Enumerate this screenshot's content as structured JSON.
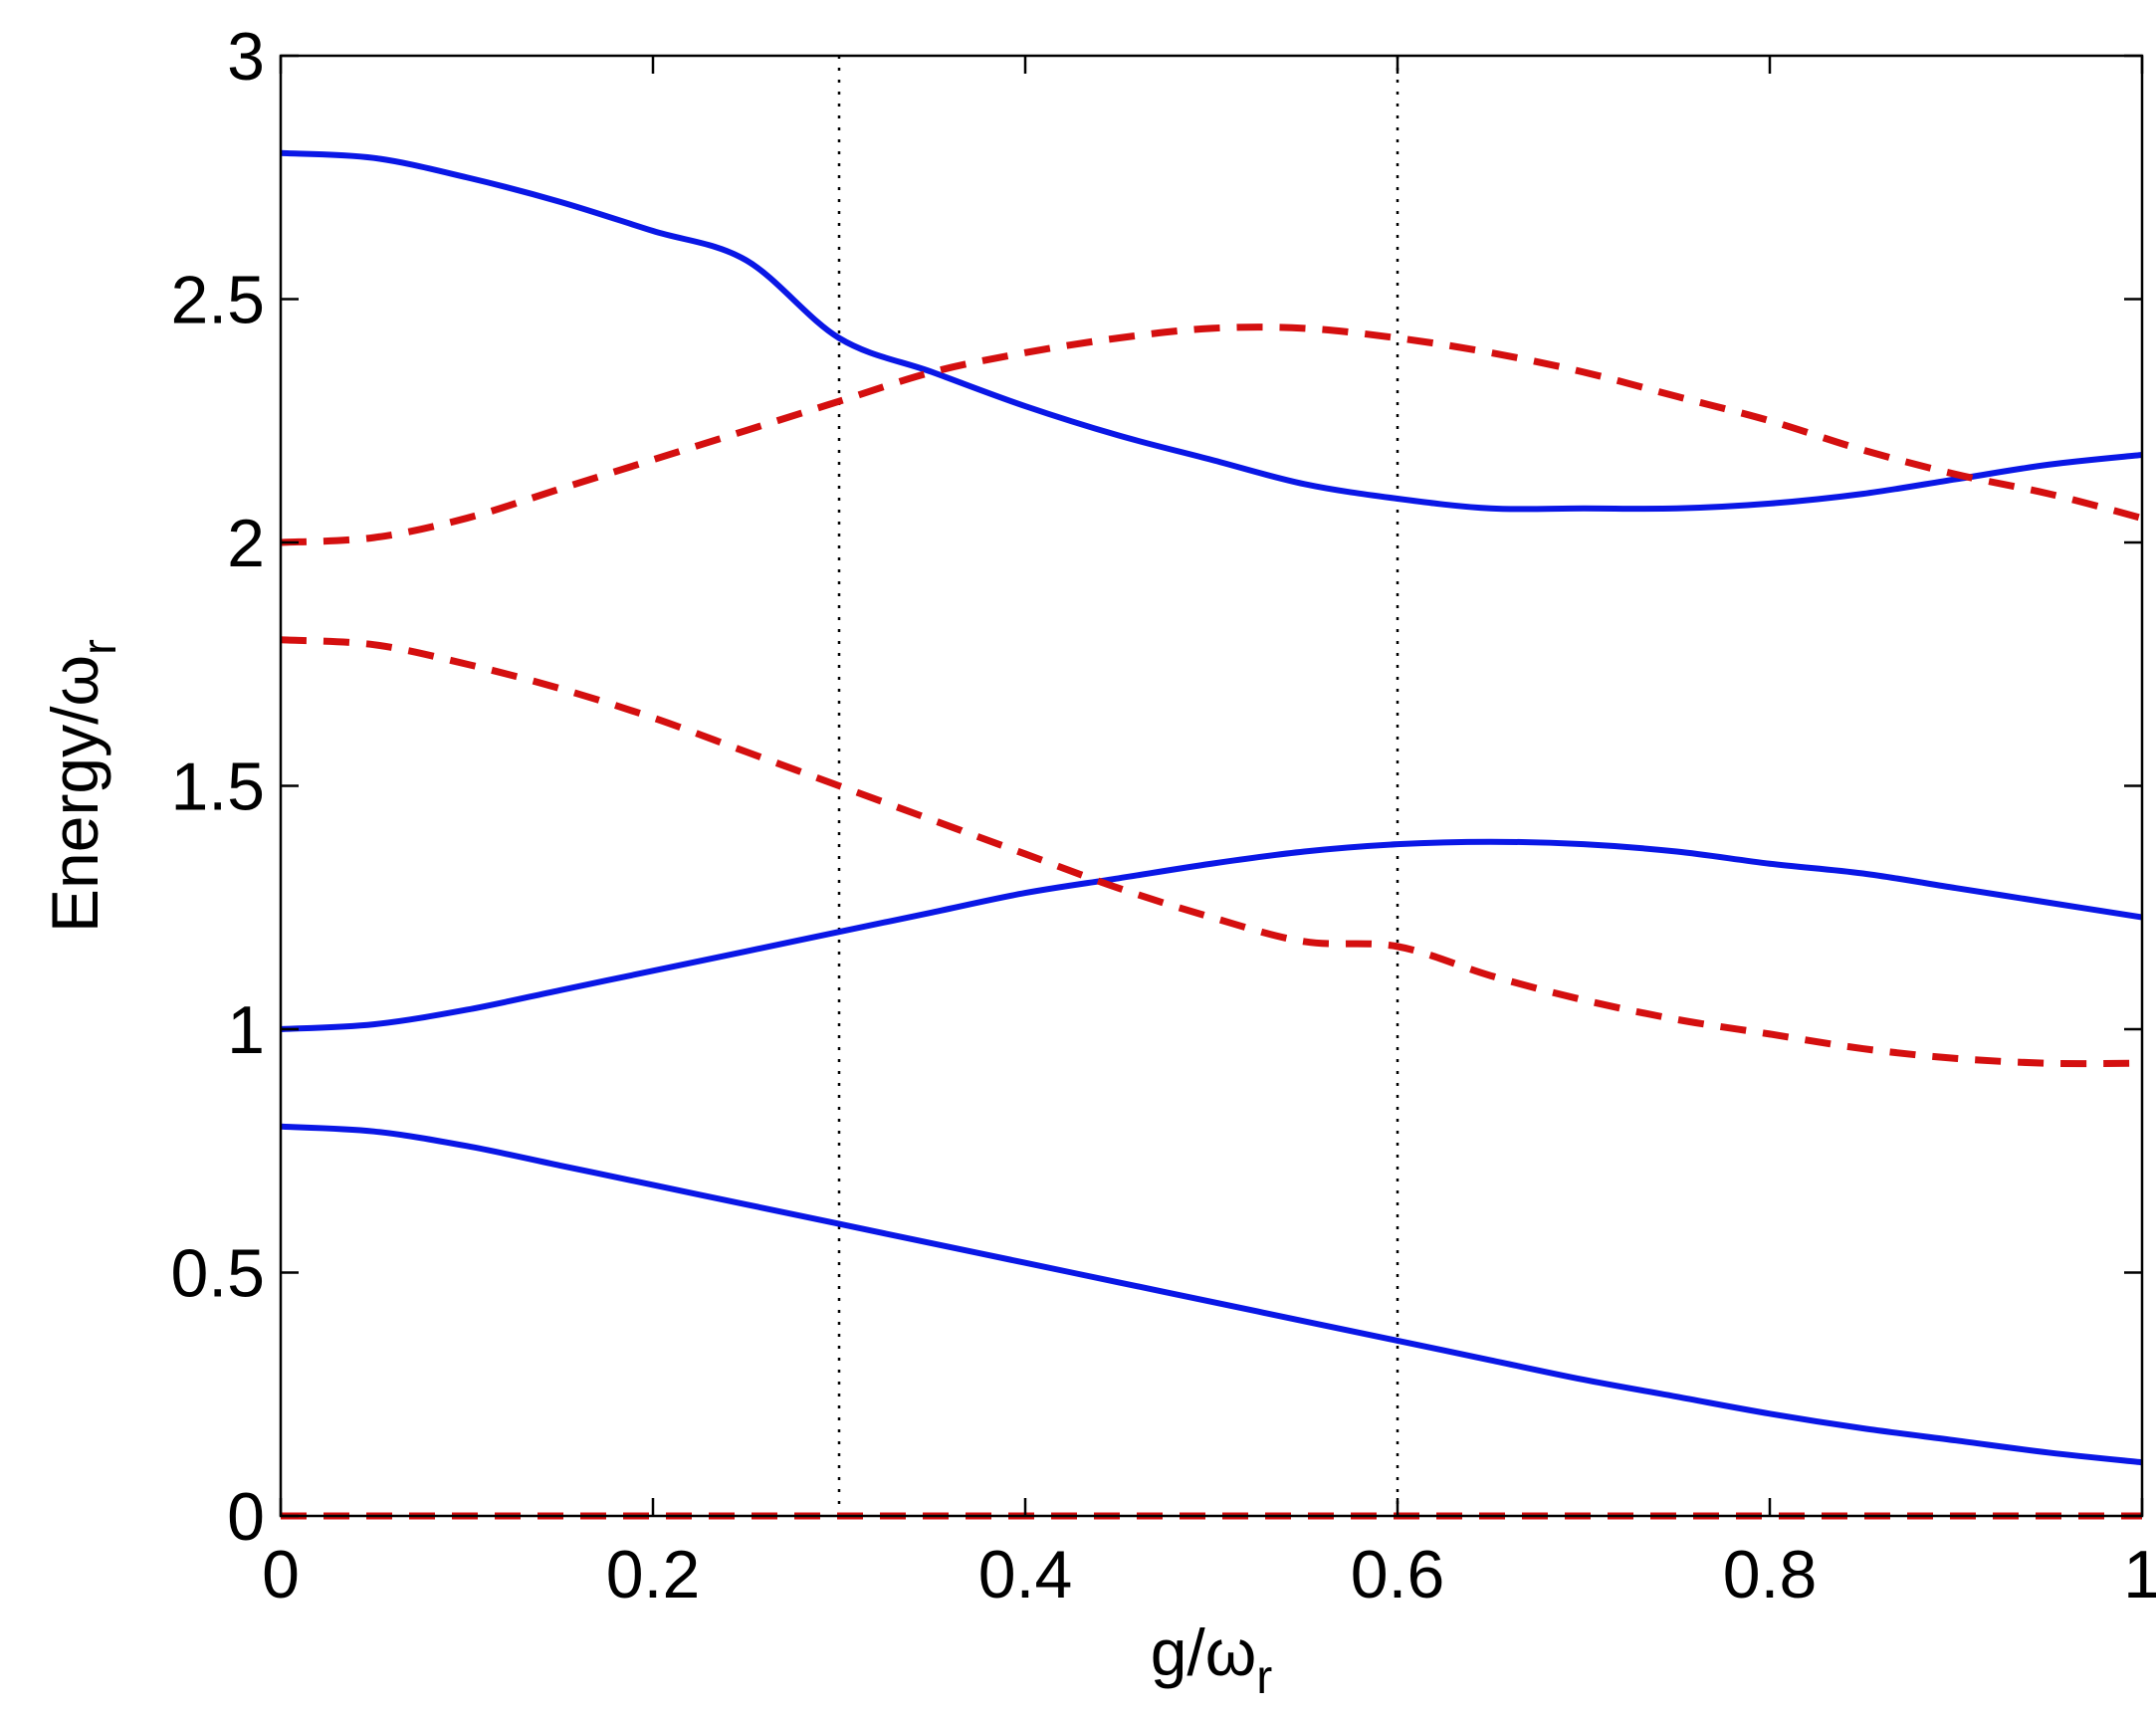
{
  "chart_data": {
    "type": "line",
    "title": "",
    "xlabel": {
      "main": "g/ω",
      "sub": "r"
    },
    "ylabel": {
      "main": "Energy/ω",
      "sub": "r"
    },
    "xlim": [
      0,
      1
    ],
    "ylim": [
      0,
      3
    ],
    "xticks": [
      0,
      0.2,
      0.4,
      0.6,
      0.8,
      1
    ],
    "xtick_labels": [
      "0",
      "0.2",
      "0.4",
      "0.6",
      "0.8",
      "1"
    ],
    "yticks": [
      0,
      0.5,
      1,
      1.5,
      2,
      2.5,
      3
    ],
    "ytick_labels": [
      "0",
      "0.5",
      "1",
      "1.5",
      "2",
      "2.5",
      "3"
    ],
    "grid": false,
    "vlines": [
      0.3,
      0.6
    ],
    "series": [
      {
        "style": "solid",
        "color": "#0a17e6",
        "x": [
          0,
          0.05,
          0.1,
          0.15,
          0.2,
          0.25,
          0.3,
          0.35,
          0.4,
          0.45,
          0.5,
          0.55,
          0.6,
          0.65,
          0.7,
          0.75,
          0.8,
          0.85,
          0.9,
          0.95,
          1
        ],
        "y": [
          0.8,
          0.79,
          0.76,
          0.72,
          0.68,
          0.64,
          0.6,
          0.56,
          0.52,
          0.48,
          0.44,
          0.4,
          0.36,
          0.32,
          0.28,
          0.245,
          0.21,
          0.18,
          0.155,
          0.13,
          0.11
        ]
      },
      {
        "style": "solid",
        "color": "#0a17e6",
        "x": [
          0,
          0.05,
          0.1,
          0.15,
          0.2,
          0.25,
          0.3,
          0.35,
          0.4,
          0.45,
          0.5,
          0.55,
          0.6,
          0.65,
          0.7,
          0.75,
          0.8,
          0.85,
          0.9,
          0.95,
          1
        ],
        "y": [
          1.0,
          1.01,
          1.04,
          1.08,
          1.12,
          1.16,
          1.2,
          1.24,
          1.28,
          1.31,
          1.34,
          1.365,
          1.38,
          1.385,
          1.38,
          1.365,
          1.34,
          1.32,
          1.29,
          1.26,
          1.23
        ]
      },
      {
        "style": "solid",
        "color": "#0a17e6",
        "x": [
          0,
          0.05,
          0.1,
          0.15,
          0.2,
          0.25,
          0.3,
          0.35,
          0.4,
          0.45,
          0.5,
          0.55,
          0.6,
          0.65,
          0.7,
          0.75,
          0.8,
          0.85,
          0.9,
          0.95,
          1
        ],
        "y": [
          2.8,
          2.79,
          2.75,
          2.7,
          2.64,
          2.58,
          2.42,
          2.35,
          2.28,
          2.22,
          2.17,
          2.12,
          2.09,
          2.07,
          2.07,
          2.07,
          2.08,
          2.1,
          2.13,
          2.16,
          2.18
        ]
      },
      {
        "style": "dashed",
        "color": "#d40f0f",
        "x": [
          0,
          1
        ],
        "y": [
          0,
          0
        ]
      },
      {
        "style": "dashed",
        "color": "#d40f0f",
        "x": [
          0,
          0.05,
          0.1,
          0.15,
          0.2,
          0.25,
          0.3,
          0.35,
          0.4,
          0.45,
          0.5,
          0.55,
          0.6,
          0.65,
          0.7,
          0.75,
          0.8,
          0.85,
          0.9,
          0.95,
          1
        ],
        "y": [
          1.8,
          1.79,
          1.75,
          1.7,
          1.64,
          1.57,
          1.5,
          1.43,
          1.36,
          1.29,
          1.23,
          1.18,
          1.17,
          1.11,
          1.06,
          1.02,
          0.99,
          0.96,
          0.94,
          0.93,
          0.93
        ]
      },
      {
        "style": "dashed",
        "color": "#d40f0f",
        "x": [
          0,
          0.05,
          0.1,
          0.15,
          0.2,
          0.25,
          0.3,
          0.35,
          0.4,
          0.45,
          0.5,
          0.55,
          0.6,
          0.65,
          0.7,
          0.75,
          0.8,
          0.85,
          0.9,
          0.95,
          1
        ],
        "y": [
          2.0,
          2.01,
          2.05,
          2.11,
          2.17,
          2.23,
          2.29,
          2.35,
          2.39,
          2.42,
          2.44,
          2.44,
          2.42,
          2.39,
          2.35,
          2.3,
          2.25,
          2.19,
          2.14,
          2.1,
          2.05
        ]
      }
    ]
  }
}
